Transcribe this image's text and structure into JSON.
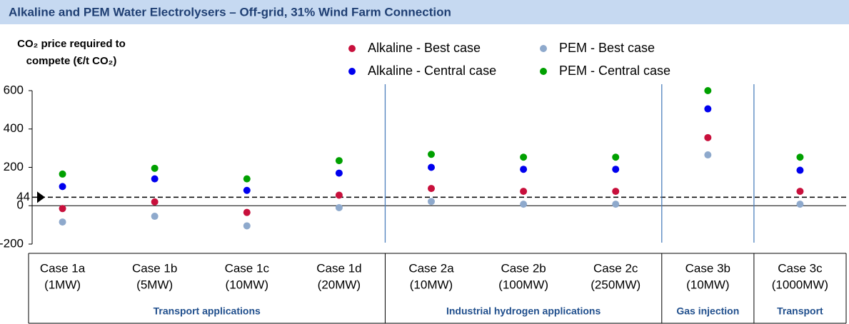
{
  "chart_data": {
    "type": "dot",
    "title": "Alkaline and PEM Water Electrolysers – Off-grid, 31% Wind Farm Connection",
    "ylabel": [
      "CO₂ price required to",
      "compete (€/t CO₂)"
    ],
    "categories": [
      "Case 1a",
      "Case 1b",
      "Case 1c",
      "Case 1d",
      "Case 2a",
      "Case 2b",
      "Case 2c",
      "Case 3b",
      "Case 3c"
    ],
    "capacities": [
      "(1MW)",
      "(5MW)",
      "(10MW)",
      "(20MW)",
      "(10MW)",
      "(100MW)",
      "(250MW)",
      "(10MW)",
      "(1000MW)"
    ],
    "groups": [
      {
        "label": "Transport applications",
        "count": 4
      },
      {
        "label": "Industrial hydrogen applications",
        "count": 3
      },
      {
        "label": "Gas injection",
        "count": 1
      },
      {
        "label": "Transport",
        "count": 1
      }
    ],
    "series": [
      {
        "name": "Alkaline - Best case",
        "color": "#c8103c",
        "values": [
          -15,
          20,
          -35,
          55,
          90,
          75,
          75,
          355,
          75
        ]
      },
      {
        "name": "Alkaline - Central case",
        "color": "#0000ee",
        "values": [
          100,
          140,
          80,
          170,
          200,
          190,
          190,
          505,
          185
        ]
      },
      {
        "name": "PEM - Best case",
        "color": "#8ea9cc",
        "values": [
          -85,
          -55,
          -105,
          -10,
          22,
          8,
          8,
          265,
          8
        ]
      },
      {
        "name": "PEM - Central case",
        "color": "#00a000",
        "values": [
          165,
          195,
          140,
          235,
          268,
          253,
          253,
          600,
          253
        ]
      }
    ],
    "reference_line": 44,
    "ylim": [
      -200,
      600
    ],
    "yticks": [
      -200,
      0,
      200,
      400,
      600
    ]
  }
}
